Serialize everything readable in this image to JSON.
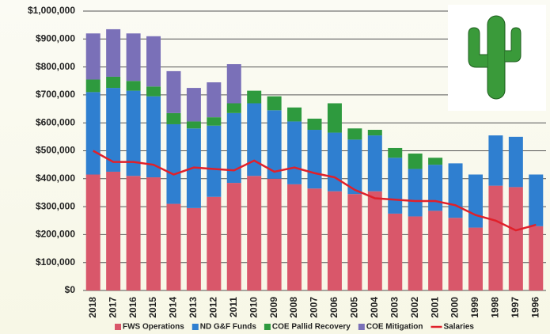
{
  "chart_data": {
    "type": "stacked_bar_line",
    "categories": [
      "2018",
      "2017",
      "2016",
      "2015",
      "2014",
      "2013",
      "2012",
      "2011",
      "2010",
      "2009",
      "2008",
      "2007",
      "2006",
      "2005",
      "2004",
      "2003",
      "2002",
      "2001",
      "2000",
      "1999",
      "1998",
      "1997",
      "1996"
    ],
    "series": [
      {
        "name": "FWS Operations",
        "color": "#d9576a",
        "values": [
          415000,
          425000,
          410000,
          405000,
          310000,
          295000,
          335000,
          385000,
          410000,
          400000,
          380000,
          365000,
          355000,
          345000,
          355000,
          275000,
          265000,
          285000,
          260000,
          225000,
          375000,
          370000,
          230000
        ]
      },
      {
        "name": "ND G&F Funds",
        "color": "#2f7fd0",
        "values": [
          295000,
          300000,
          305000,
          290000,
          285000,
          285000,
          255000,
          250000,
          260000,
          245000,
          225000,
          210000,
          210000,
          195000,
          200000,
          200000,
          170000,
          165000,
          195000,
          190000,
          180000,
          180000,
          185000
        ]
      },
      {
        "name": "COE Pallid Recovery",
        "color": "#2e9a3e",
        "values": [
          45000,
          40000,
          35000,
          35000,
          40000,
          25000,
          30000,
          35000,
          45000,
          50000,
          50000,
          40000,
          105000,
          40000,
          20000,
          35000,
          55000,
          25000,
          0,
          0,
          0,
          0,
          0
        ]
      },
      {
        "name": "COE Mitigation",
        "color": "#7a70b8",
        "values": [
          165000,
          170000,
          170000,
          180000,
          150000,
          120000,
          125000,
          140000,
          0,
          0,
          0,
          0,
          0,
          0,
          0,
          0,
          0,
          0,
          0,
          0,
          0,
          0,
          0
        ]
      },
      {
        "name": "Salaries",
        "color": "#e0202a",
        "type": "line",
        "values": [
          500000,
          460000,
          460000,
          450000,
          415000,
          440000,
          435000,
          430000,
          465000,
          425000,
          440000,
          420000,
          405000,
          360000,
          330000,
          325000,
          320000,
          320000,
          305000,
          270000,
          250000,
          215000,
          235000
        ]
      }
    ],
    "ylim": [
      0,
      1000000
    ],
    "yticks": [
      {
        "value": 0,
        "label": "$0"
      },
      {
        "value": 100000,
        "label": "$100,000"
      },
      {
        "value": 200000,
        "label": "$200,000"
      },
      {
        "value": 300000,
        "label": "$300,000"
      },
      {
        "value": 400000,
        "label": "$400,000"
      },
      {
        "value": 500000,
        "label": "$500,000"
      },
      {
        "value": 600000,
        "label": "$600,000"
      },
      {
        "value": 700000,
        "label": "$700,000"
      },
      {
        "value": 800000,
        "label": "$800,000"
      },
      {
        "value": 900000,
        "label": "$900,000"
      },
      {
        "value": 1000000,
        "label": "$1,000,000"
      }
    ],
    "grid": true,
    "legend": "bottom"
  }
}
